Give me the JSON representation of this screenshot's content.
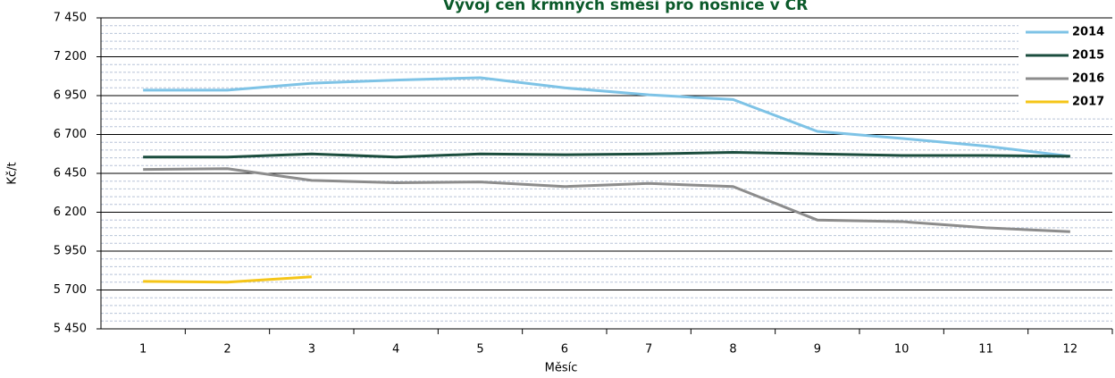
{
  "chart_data": {
    "type": "line",
    "title": "Vývoj cen krmných směsí pro nosnice v ČR",
    "x_label": "Měsíc",
    "y_label": "Kč/t",
    "categories": [
      "1",
      "2",
      "3",
      "4",
      "5",
      "6",
      "7",
      "8",
      "9",
      "10",
      "11",
      "12"
    ],
    "series": [
      {
        "name": "2014",
        "color": "#7ec3e6",
        "values": [
          6985,
          6985,
          7030,
          7050,
          7065,
          7000,
          6955,
          6925,
          6720,
          6675,
          6625,
          6560
        ]
      },
      {
        "name": "2015",
        "color": "#1b4d3e",
        "values": [
          6555,
          6555,
          6575,
          6555,
          6575,
          6570,
          6575,
          6585,
          6575,
          6565,
          6565,
          6560
        ]
      },
      {
        "name": "2016",
        "color": "#8c8c8c",
        "values": [
          6475,
          6480,
          6405,
          6390,
          6395,
          6365,
          6385,
          6365,
          6150,
          6140,
          6100,
          6075
        ]
      },
      {
        "name": "2017",
        "color": "#f5c518",
        "values": [
          5755,
          5750,
          5785,
          null,
          null,
          null,
          null,
          null,
          null,
          null,
          null,
          null
        ]
      }
    ],
    "ylim": [
      5450,
      7450
    ],
    "yticks": [
      {
        "value": 5450,
        "label": "5 450"
      },
      {
        "value": 5700,
        "label": "5 700"
      },
      {
        "value": 5950,
        "label": "5 950"
      },
      {
        "value": 6200,
        "label": "6 200"
      },
      {
        "value": 6450,
        "label": "6 450"
      },
      {
        "value": 6700,
        "label": "6 700"
      },
      {
        "value": 6950,
        "label": "6 950"
      },
      {
        "value": 7200,
        "label": "7 200"
      },
      {
        "value": 7450,
        "label": "7 450"
      }
    ],
    "grid": true,
    "legend": "top-right"
  }
}
